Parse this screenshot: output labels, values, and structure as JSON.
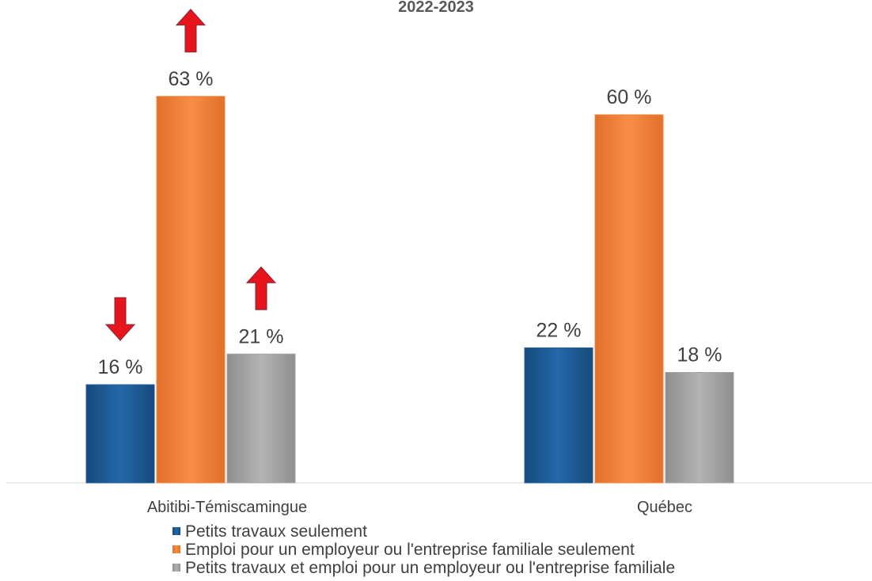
{
  "chart_data": {
    "type": "bar",
    "title": "2022-2023",
    "categories": [
      "Abitibi-Témiscamingue",
      "Québec"
    ],
    "series": [
      {
        "name": "Petits travaux seulement",
        "values": [
          16,
          22
        ],
        "value_labels": [
          "16 %",
          "22 %"
        ],
        "color": "#1F5F9E"
      },
      {
        "name": "Emploi pour un employeur ou l'entreprise familiale seulement",
        "values": [
          63,
          60
        ],
        "value_labels": [
          "63 %",
          "60 %"
        ],
        "color": "#F5843C"
      },
      {
        "name": "Petits travaux et emploi pour un employeur ou l'entreprise familiale",
        "values": [
          21,
          18
        ],
        "value_labels": [
          "21 %",
          "18 %"
        ],
        "color": "#A6A6A6"
      }
    ],
    "ylim": [
      0,
      70
    ],
    "xlabel": "",
    "ylabel": "",
    "grid": false,
    "legend_position": "bottom",
    "annotations": [
      {
        "category": "Abitibi-Témiscamingue",
        "series": "Petits travaux seulement",
        "marker": "down-arrow",
        "color": "#E8141B"
      },
      {
        "category": "Abitibi-Témiscamingue",
        "series": "Emploi pour un employeur ou l'entreprise familiale seulement",
        "marker": "up-arrow",
        "color": "#E8141B"
      },
      {
        "category": "Abitibi-Témiscamingue",
        "series": "Petits travaux et emploi pour un employeur ou l'entreprise familiale",
        "marker": "up-arrow",
        "color": "#E8141B"
      }
    ]
  }
}
